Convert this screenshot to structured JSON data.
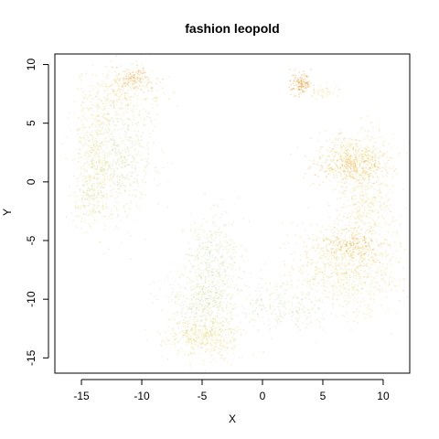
{
  "chart_data": {
    "type": "scatter",
    "title": "fashion leopold",
    "xlabel": "X",
    "ylabel": "Y",
    "xlim": [
      -17.2,
      12.2
    ],
    "ylim": [
      -16.3,
      10.9
    ],
    "xticks": [
      -15,
      -10,
      -5,
      0,
      5,
      10
    ],
    "yticks": [
      -15,
      -10,
      -5,
      0,
      5,
      10
    ],
    "grid": false,
    "legend": "none",
    "point_alpha": 0.35,
    "palette": {
      "low": "#a8d8c8",
      "mid": "#f0e68c",
      "high": "#e8a040"
    },
    "clusters": [
      {
        "name": "left-arc-top",
        "cx": -11.5,
        "cy": 7.5,
        "sx": 1.6,
        "sy": 1.4,
        "n": 260,
        "level": 0.62
      },
      {
        "name": "left-arc-peak",
        "cx": -10.7,
        "cy": 8.8,
        "sx": 0.7,
        "sy": 0.5,
        "n": 120,
        "level": 0.9
      },
      {
        "name": "left-arc-side",
        "cx": -13.8,
        "cy": 2.5,
        "sx": 0.9,
        "sy": 3.0,
        "n": 420,
        "level": 0.5
      },
      {
        "name": "left-arc-inner",
        "cx": -11.8,
        "cy": 1.8,
        "sx": 1.5,
        "sy": 2.6,
        "n": 520,
        "level": 0.28
      },
      {
        "name": "left-arc-bottom",
        "cx": -14.3,
        "cy": -1.5,
        "sx": 0.6,
        "sy": 1.0,
        "n": 140,
        "level": 0.38
      },
      {
        "name": "top-right-blob",
        "cx": 3.2,
        "cy": 8.3,
        "sx": 0.45,
        "sy": 0.45,
        "n": 130,
        "level": 1.0
      },
      {
        "name": "top-right-tail",
        "cx": 5.0,
        "cy": 7.8,
        "sx": 0.7,
        "sy": 0.3,
        "n": 40,
        "level": 0.6
      },
      {
        "name": "right-upper-band",
        "cx": 7.5,
        "cy": 1.8,
        "sx": 1.6,
        "sy": 1.2,
        "n": 560,
        "level": 0.62
      },
      {
        "name": "right-upper-ridge",
        "cx": 7.6,
        "cy": 1.2,
        "sx": 1.3,
        "sy": 0.6,
        "n": 150,
        "level": 0.85
      },
      {
        "name": "right-mid",
        "cx": 8.6,
        "cy": -2.2,
        "sx": 1.1,
        "sy": 1.3,
        "n": 280,
        "level": 0.5
      },
      {
        "name": "right-lower-lobe",
        "cx": 7.0,
        "cy": -7.0,
        "sx": 2.3,
        "sy": 2.0,
        "n": 900,
        "level": 0.55
      },
      {
        "name": "right-lower-ridge",
        "cx": 7.4,
        "cy": -5.5,
        "sx": 1.3,
        "sy": 0.6,
        "n": 160,
        "level": 0.88
      },
      {
        "name": "center-diagonal-upper",
        "cx": -4.0,
        "cy": -6.5,
        "sx": 1.2,
        "sy": 2.0,
        "n": 380,
        "level": 0.3
      },
      {
        "name": "center-diagonal-mid",
        "cx": -5.0,
        "cy": -10.5,
        "sx": 1.4,
        "sy": 1.6,
        "n": 460,
        "level": 0.3
      },
      {
        "name": "center-bottom",
        "cx": -4.8,
        "cy": -13.2,
        "sx": 1.6,
        "sy": 0.9,
        "n": 420,
        "level": 0.52
      },
      {
        "name": "bridge",
        "cx": 1.5,
        "cy": -10.5,
        "sx": 2.0,
        "sy": 1.1,
        "n": 220,
        "level": 0.22
      }
    ]
  }
}
